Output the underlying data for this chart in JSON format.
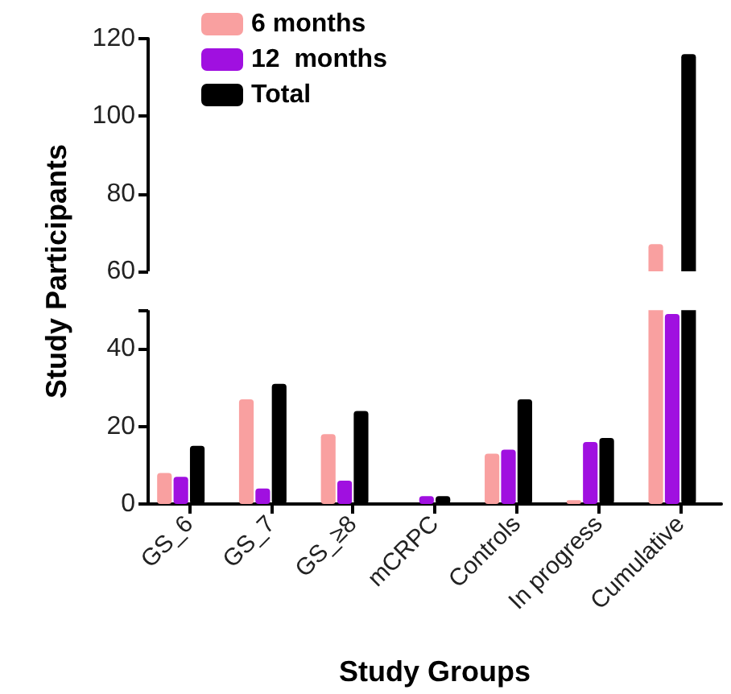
{
  "chart_data": {
    "type": "bar",
    "categories": [
      "GS_6",
      "GS_7",
      "GS_≥8",
      "mCRPC",
      "Controls",
      "In progress",
      "Cumulative"
    ],
    "series": [
      {
        "name": "6 months",
        "color": "#f9a0a0",
        "values": [
          8,
          27,
          18,
          0,
          13,
          1,
          67
        ]
      },
      {
        "name": "12  months",
        "color": "#a010e0",
        "values": [
          7,
          4,
          6,
          2,
          14,
          16,
          49
        ]
      },
      {
        "name": "Total",
        "color": "#000000",
        "values": [
          15,
          31,
          24,
          2,
          27,
          17,
          116
        ]
      }
    ],
    "ylim": [
      0,
      120
    ],
    "yticks": [
      0,
      20,
      40,
      {
        "value": 50,
        "label": null
      },
      60,
      80,
      100,
      120
    ],
    "xlabel": "Study Groups",
    "ylabel": "Study Participants",
    "bands": [
      {
        "axis": "y",
        "from": 50,
        "to": 60,
        "color": "#ffffff"
      }
    ],
    "legend": "top left",
    "grid": false
  }
}
